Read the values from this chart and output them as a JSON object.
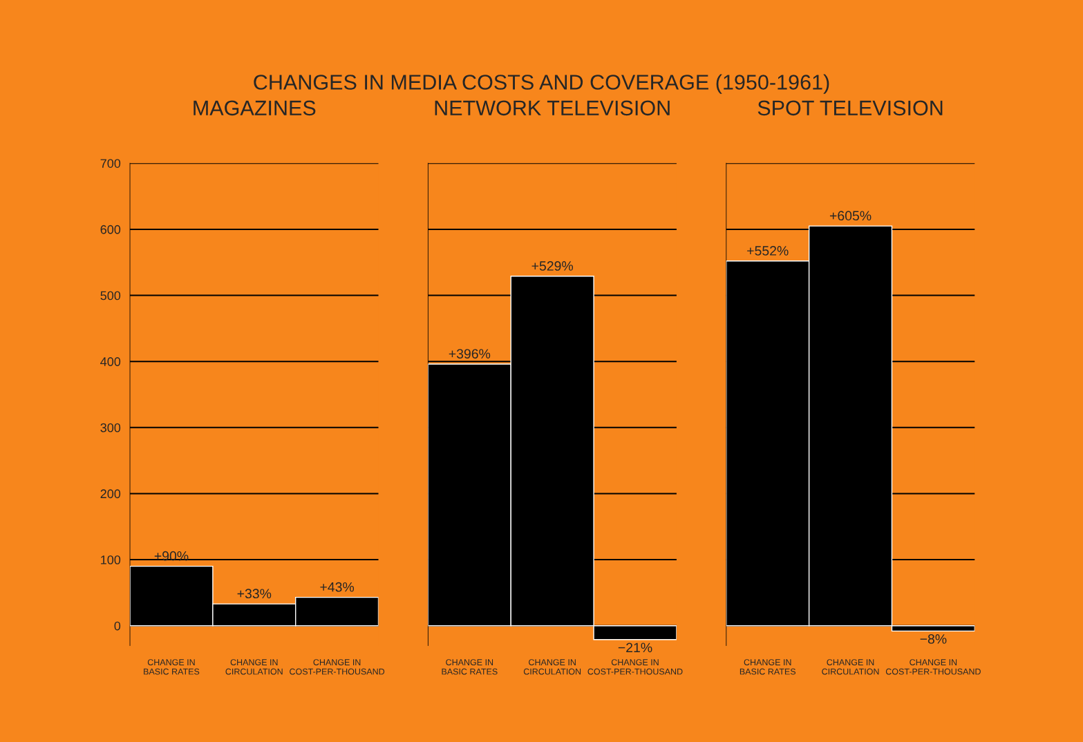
{
  "chart_data": [
    {
      "type": "bar",
      "title": "CHANGES IN MEDIA COSTS AND COVERAGE (1950-1961)",
      "subtitle": "MAGAZINES",
      "categories": [
        "CHANGE IN\nBASIC RATES",
        "CHANGE IN\nCIRCULATION",
        "CHANGE IN\nCOST-PER-THOUSAND"
      ],
      "values": [
        90,
        33,
        43
      ],
      "value_labels": [
        "+90%",
        "+33%",
        "+43%"
      ],
      "color": "#000000",
      "ylim": [
        -30,
        700
      ],
      "yticks": [
        0,
        100,
        200,
        300,
        400,
        500,
        600,
        700
      ],
      "grid": "y"
    },
    {
      "type": "bar",
      "subtitle": "NETWORK TELEVISION",
      "categories": [
        "CHANGE IN\nBASIC RATES",
        "CHANGE IN\nCIRCULATION",
        "CHANGE IN\nCOST-PER-THOUSAND"
      ],
      "values": [
        396,
        529,
        -21
      ],
      "value_labels": [
        "+396%",
        "+529%",
        "−21%"
      ],
      "color": "#000000",
      "ylim": [
        -30,
        700
      ],
      "yticks": [
        0,
        100,
        200,
        300,
        400,
        500,
        600,
        700
      ],
      "grid": "y",
      "tick_labels": "x"
    },
    {
      "type": "bar",
      "subtitle": "SPOT TELEVISION",
      "categories": [
        "CHANGE IN\nBASIC RATES",
        "CHANGE IN\nCIRCULATION",
        "CHANGE IN\nCOST-PER-THOUSAND"
      ],
      "values": [
        552,
        605,
        -8
      ],
      "value_labels": [
        "+552%",
        "+605%",
        "−8%"
      ],
      "color": "#000000",
      "ylim": [
        -30,
        700
      ],
      "yticks": [
        0,
        100,
        200,
        300,
        400,
        500,
        600,
        700
      ],
      "grid": "y",
      "tick_labels": "x"
    }
  ]
}
